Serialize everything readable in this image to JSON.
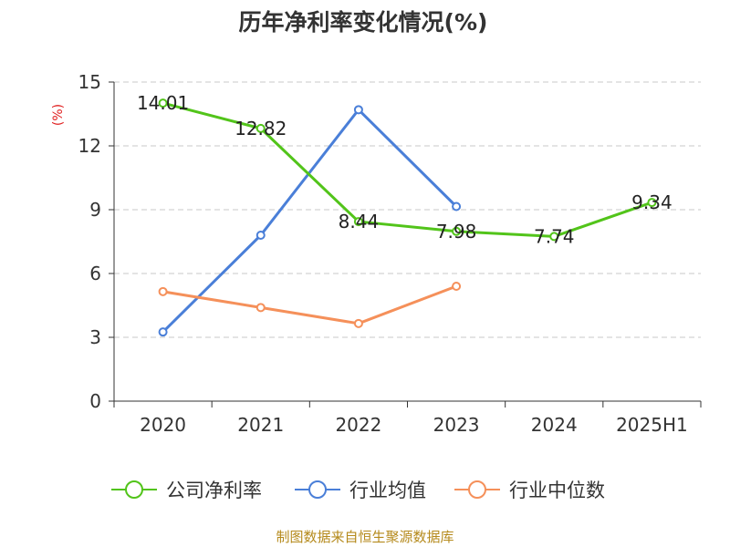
{
  "chart_data": {
    "type": "line",
    "title": "历年净利率变化情况(%)",
    "ylabel": "(%)",
    "categories": [
      "2020",
      "2021",
      "2022",
      "2023",
      "2024",
      "2025H1"
    ],
    "ylim": [
      0,
      15
    ],
    "yticks": [
      "0",
      "3",
      "6",
      "9",
      "12",
      "15"
    ],
    "grid": true,
    "legend_position": "bottom",
    "series": [
      {
        "name": "公司净利率",
        "color": "#52c41a",
        "values": [
          14.01,
          12.82,
          8.44,
          7.98,
          7.74,
          9.34
        ],
        "labels": [
          "14.01",
          "12.82",
          "8.44",
          "7.98",
          "7.74",
          "9.34"
        ]
      },
      {
        "name": "行业均值",
        "color": "#4a7fd8",
        "values": [
          3.25,
          7.8,
          13.7,
          9.15,
          null,
          null
        ],
        "labels": []
      },
      {
        "name": "行业中位数",
        "color": "#f5905a",
        "values": [
          5.15,
          4.4,
          3.65,
          5.4,
          null,
          null
        ],
        "labels": []
      }
    ]
  },
  "source": "制图数据来自恒生聚源数据库"
}
